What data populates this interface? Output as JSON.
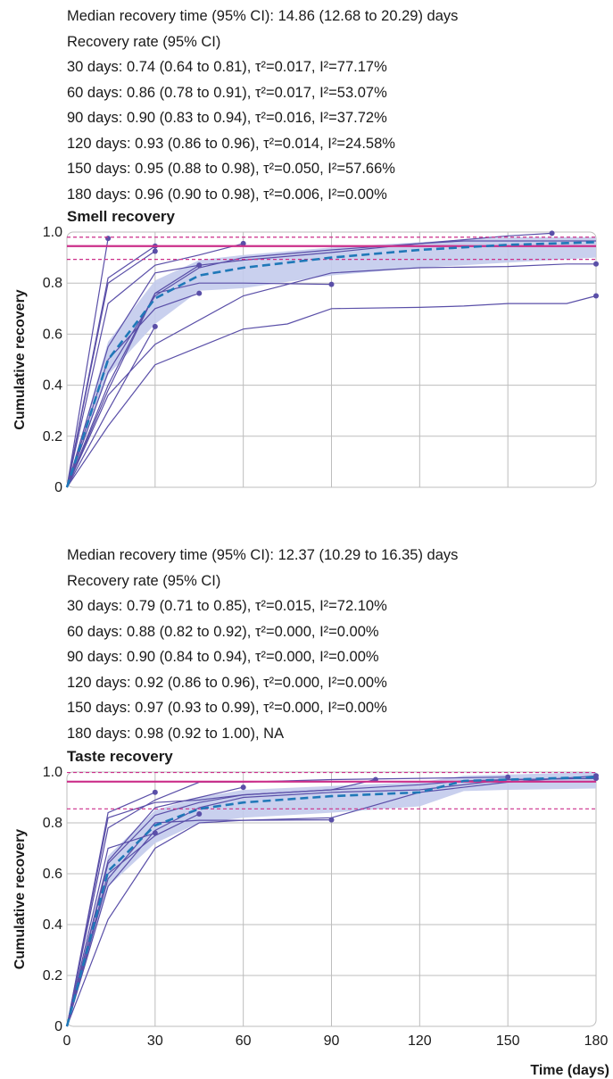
{
  "colors": {
    "study_line": "#5a4fa8",
    "pooled_line": "#1f78b8",
    "ci_band": "#c3cbec",
    "reference": "#cc2f8a",
    "grid": "#bdbdbd"
  },
  "panels": [
    {
      "stats": [
        "Median recovery time (95% CI): 14.86 (12.68 to 20.29) days",
        "Recovery rate (95% CI)",
        "30 days: 0.74 (0.64 to 0.81), τ²=0.017, I²=77.17%",
        "60 days: 0.86 (0.78 to 0.91), τ²=0.017, I²=53.07%",
        "90 days: 0.90 (0.83 to 0.94), τ²=0.016, I²=37.72%",
        "120 days: 0.93 (0.86 to 0.96), τ²=0.014, I²=24.58%",
        "150 days: 0.95 (0.88 to 0.98), τ²=0.050, I²=57.66%",
        "180 days: 0.96 (0.90 to 0.98), τ²=0.006, I²=0.00%"
      ]
    },
    {
      "stats": [
        "Median recovery time (95% CI): 12.37 (10.29 to 16.35) days",
        "Recovery rate (95% CI)",
        "30 days: 0.79 (0.71 to 0.85), τ²=0.015, I²=72.10%",
        "60 days: 0.88 (0.82 to 0.92), τ²=0.000, I²=0.00%",
        "90 days: 0.90 (0.84 to 0.94), τ²=0.000, I²=0.00%",
        "120 days: 0.92 (0.86 to 0.96), τ²=0.000, I²=0.00%",
        "150 days: 0.97 (0.93 to 0.99), τ²=0.000, I²=0.00%",
        "180 days: 0.98 (0.92 to 1.00), NA"
      ]
    }
  ],
  "chart_data": [
    {
      "type": "line",
      "title": "Smell recovery",
      "ylabel": "Cumulative recovery",
      "xlabel": "",
      "xlim": [
        0,
        180
      ],
      "ylim": [
        0,
        1
      ],
      "yticks": [
        0,
        0.2,
        0.4,
        0.6,
        0.8,
        1.0
      ],
      "ytick_labels": [
        "0",
        "0.2",
        "0.4",
        "0.6",
        "0.8",
        "1.0"
      ],
      "xticks": [
        0,
        30,
        60,
        90,
        120,
        150,
        180
      ],
      "xtick_labels": [],
      "grid": true,
      "reference": {
        "value": 0.945,
        "lower": 0.893,
        "upper": 0.98
      },
      "pooled": {
        "x": [
          0,
          14,
          30,
          45,
          60,
          90,
          120,
          150,
          180
        ],
        "y": [
          0,
          0.5,
          0.74,
          0.83,
          0.86,
          0.9,
          0.93,
          0.95,
          0.96
        ]
      },
      "ci_band": {
        "x": [
          0,
          14,
          30,
          45,
          60,
          90,
          120,
          150,
          180
        ],
        "lower": [
          0,
          0.44,
          0.64,
          0.77,
          0.78,
          0.83,
          0.86,
          0.88,
          0.9
        ],
        "upper": [
          0,
          0.57,
          0.81,
          0.89,
          0.91,
          0.94,
          0.96,
          0.98,
          0.98
        ]
      },
      "studies": [
        {
          "x": [
            0,
            14
          ],
          "y": [
            0,
            0.975
          ],
          "end_dot": true
        },
        {
          "x": [
            0,
            14,
            30
          ],
          "y": [
            0,
            0.82,
            0.945
          ],
          "end_dot": true
        },
        {
          "x": [
            0,
            14,
            30
          ],
          "y": [
            0,
            0.8,
            0.925
          ],
          "end_dot": true
        },
        {
          "x": [
            0,
            14,
            30
          ],
          "y": [
            0,
            0.3,
            0.63
          ],
          "end_dot": true
        },
        {
          "x": [
            0,
            14,
            30,
            45
          ],
          "y": [
            0,
            0.5,
            0.7,
            0.76
          ],
          "end_dot": true
        },
        {
          "x": [
            0,
            14,
            30,
            45
          ],
          "y": [
            0,
            0.55,
            0.84,
            0.87
          ],
          "end_dot": true
        },
        {
          "x": [
            0,
            14,
            30,
            45,
            60
          ],
          "y": [
            0,
            0.72,
            0.87,
            0.91,
            0.955
          ],
          "end_dot": true
        },
        {
          "x": [
            0,
            14,
            30,
            45,
            60,
            90
          ],
          "y": [
            0,
            0.38,
            0.76,
            0.8,
            0.8,
            0.795
          ],
          "end_dot": true
        },
        {
          "x": [
            0,
            14,
            30,
            45,
            60,
            90,
            120,
            150,
            165
          ],
          "y": [
            0,
            0.45,
            0.75,
            0.86,
            0.9,
            0.93,
            0.955,
            0.985,
            0.995
          ],
          "end_dot": true
        },
        {
          "x": [
            0,
            14,
            30,
            45,
            60,
            90,
            120,
            135,
            150,
            180
          ],
          "y": [
            0,
            0.4,
            0.76,
            0.87,
            0.89,
            0.92,
            0.955,
            0.965,
            0.965,
            0.965
          ],
          "end_dot": false
        },
        {
          "x": [
            0,
            14,
            30,
            60,
            90,
            120,
            150,
            170,
            180
          ],
          "y": [
            0,
            0.36,
            0.56,
            0.75,
            0.84,
            0.86,
            0.865,
            0.875,
            0.875
          ],
          "end_dot": true
        },
        {
          "x": [
            0,
            14,
            30,
            45,
            60,
            75,
            90,
            120,
            135,
            150,
            170,
            180
          ],
          "y": [
            0,
            0.24,
            0.48,
            0.55,
            0.62,
            0.64,
            0.7,
            0.705,
            0.71,
            0.72,
            0.72,
            0.75
          ],
          "end_dot": true
        }
      ]
    },
    {
      "type": "line",
      "title": "Taste recovery",
      "ylabel": "Cumulative recovery",
      "xlabel": "Time (days)",
      "xlim": [
        0,
        180
      ],
      "ylim": [
        0,
        1
      ],
      "yticks": [
        0,
        0.2,
        0.4,
        0.6,
        0.8,
        1.0
      ],
      "ytick_labels": [
        "0",
        "0.2",
        "0.4",
        "0.6",
        "0.8",
        "1.0"
      ],
      "xticks": [
        0,
        30,
        60,
        90,
        120,
        150,
        180
      ],
      "xtick_labels": [
        "0",
        "30",
        "60",
        "90",
        "120",
        "150",
        "180"
      ],
      "grid": true,
      "reference": {
        "value": 0.962,
        "lower": 0.855,
        "upper": 0.998
      },
      "pooled": {
        "x": [
          0,
          14,
          30,
          45,
          60,
          90,
          120,
          135,
          150,
          180
        ],
        "y": [
          0,
          0.61,
          0.79,
          0.855,
          0.88,
          0.905,
          0.92,
          0.965,
          0.97,
          0.98
        ]
      },
      "ci_band": {
        "x": [
          0,
          14,
          30,
          45,
          60,
          90,
          120,
          135,
          150,
          180
        ],
        "lower": [
          0,
          0.55,
          0.72,
          0.8,
          0.82,
          0.84,
          0.865,
          0.925,
          0.93,
          0.935
        ],
        "upper": [
          0,
          0.67,
          0.85,
          0.9,
          0.93,
          0.945,
          0.96,
          0.985,
          0.99,
          1.0
        ]
      },
      "studies": [
        {
          "x": [
            0,
            14,
            30
          ],
          "y": [
            0,
            0.84,
            0.92
          ],
          "end_dot": true
        },
        {
          "x": [
            0,
            14,
            30
          ],
          "y": [
            0,
            0.7,
            0.76
          ],
          "end_dot": true
        },
        {
          "x": [
            0,
            14,
            30,
            45
          ],
          "y": [
            0,
            0.6,
            0.75,
            0.835
          ],
          "end_dot": true
        },
        {
          "x": [
            0,
            14,
            30,
            45,
            60
          ],
          "y": [
            0,
            0.65,
            0.86,
            0.9,
            0.94
          ],
          "end_dot": true
        },
        {
          "x": [
            0,
            14,
            30,
            45,
            60,
            90
          ],
          "y": [
            0,
            0.58,
            0.8,
            0.81,
            0.81,
            0.812
          ],
          "end_dot": true
        },
        {
          "x": [
            0,
            14,
            30,
            45,
            60,
            90,
            105
          ],
          "y": [
            0,
            0.82,
            0.88,
            0.89,
            0.91,
            0.93,
            0.97
          ],
          "end_dot": true
        },
        {
          "x": [
            0,
            14,
            30,
            45,
            60,
            90,
            120,
            150
          ],
          "y": [
            0,
            0.78,
            0.89,
            0.96,
            0.96,
            0.97,
            0.975,
            0.98
          ],
          "end_dot": true
        },
        {
          "x": [
            0,
            14,
            30,
            45,
            60,
            90,
            120,
            150,
            180
          ],
          "y": [
            0,
            0.55,
            0.77,
            0.86,
            0.9,
            0.92,
            0.93,
            0.97,
            0.975
          ],
          "end_dot": false
        },
        {
          "x": [
            0,
            14,
            30,
            45,
            60,
            90,
            120,
            150,
            180
          ],
          "y": [
            0,
            0.42,
            0.7,
            0.8,
            0.81,
            0.82,
            0.92,
            0.96,
            0.985
          ],
          "end_dot": true
        },
        {
          "x": [
            0,
            14,
            30,
            45,
            60,
            90,
            120,
            135,
            150,
            180
          ],
          "y": [
            0,
            0.64,
            0.83,
            0.88,
            0.91,
            0.93,
            0.95,
            0.965,
            0.97,
            0.975
          ],
          "end_dot": true
        }
      ]
    }
  ]
}
